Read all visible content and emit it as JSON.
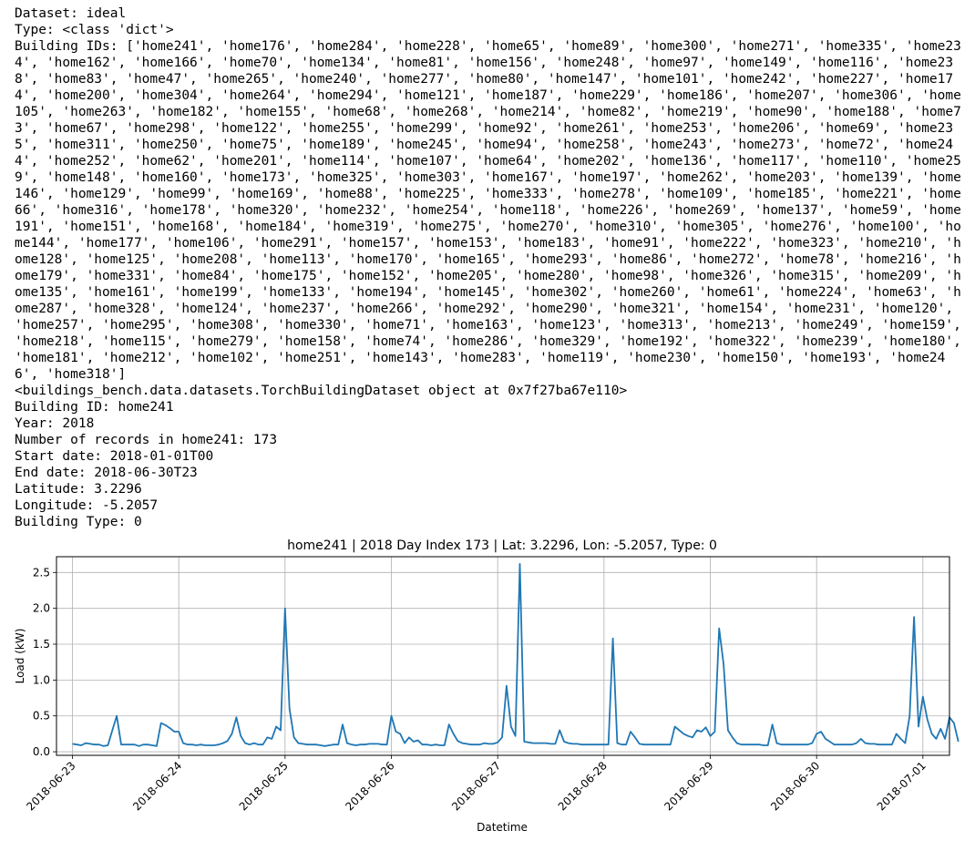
{
  "output": {
    "lines": [
      "Dataset: ideal",
      "Type: <class 'dict'>",
      "Building IDs: ['home241', 'home176', 'home284', 'home228', 'home65', 'home89', 'home300', 'home271', 'home335', 'home234', 'home162', 'home166', 'home70', 'home134', 'home81', 'home156', 'home248', 'home97', 'home149', 'home116', 'home238', 'home83', 'home47', 'home265', 'home240', 'home277', 'home80', 'home147', 'home101', 'home242', 'home227', 'home174', 'home200', 'home304', 'home264', 'home294', 'home121', 'home187', 'home229', 'home186', 'home207', 'home306', 'home105', 'home263', 'home182', 'home155', 'home68', 'home268', 'home214', 'home82', 'home219', 'home90', 'home188', 'home73', 'home67', 'home298', 'home122', 'home255', 'home299', 'home92', 'home261', 'home253', 'home206', 'home69', 'home235', 'home311', 'home250', 'home75', 'home189', 'home245', 'home94', 'home258', 'home243', 'home273', 'home72', 'home244', 'home252', 'home62', 'home201', 'home114', 'home107', 'home64', 'home202', 'home136', 'home117', 'home110', 'home259', 'home148', 'home160', 'home173', 'home325', 'home303', 'home167', 'home197', 'home262', 'home203', 'home139', 'home146', 'home129', 'home99', 'home169', 'home88', 'home225', 'home333', 'home278', 'home109', 'home185', 'home221', 'home66', 'home316', 'home178', 'home320', 'home232', 'home254', 'home118', 'home226', 'home269', 'home137', 'home59', 'home191', 'home151', 'home168', 'home184', 'home319', 'home275', 'home270', 'home310', 'home305', 'home276', 'home100', 'home144', 'home177', 'home106', 'home291', 'home157', 'home153', 'home183', 'home91', 'home222', 'home323', 'home210', 'home128', 'home125', 'home208', 'home113', 'home170', 'home165', 'home293', 'home86', 'home272', 'home78', 'home216', 'home179', 'home331', 'home84', 'home175', 'home152', 'home205', 'home280', 'home98', 'home326', 'home315', 'home209', 'home135', 'home161', 'home199', 'home133', 'home194', 'home145', 'home302', 'home260', 'home61', 'home224', 'home63', 'home287', 'home328', 'home124', 'home237', 'home266', 'home292', 'home290', 'home321', 'home154', 'home231', 'home120', 'home257', 'home295', 'home308', 'home330', 'home71', 'home163', 'home123', 'home313', 'home213', 'home249', 'home159', 'home218', 'home115', 'home279', 'home158', 'home74', 'home286', 'home329', 'home192', 'home322', 'home239', 'home180', 'home181', 'home212', 'home102', 'home251', 'home143', 'home283', 'home119', 'home230', 'home150', 'home193', 'home246', 'home318']",
      "<buildings_bench.data.datasets.TorchBuildingDataset object at 0x7f27ba67e110>",
      "Building ID: home241",
      "Year: 2018",
      "Number of records in home241: 173",
      "Start date: 2018-01-01T00",
      "End date: 2018-06-30T23",
      "Latitude: 3.2296",
      "Longitude: -5.2057",
      "Building Type: 0"
    ]
  },
  "chart_data": {
    "type": "line",
    "title": "home241 | 2018 Day Index 173 | Lat: 3.2296, Lon: -5.2057, Type: 0",
    "xlabel": "Datetime",
    "ylabel": "Load (kW)",
    "xticks": [
      "2018-06-23",
      "2018-06-24",
      "2018-06-25",
      "2018-06-26",
      "2018-06-27",
      "2018-06-28",
      "2018-06-29",
      "2018-06-30",
      "2018-07-01"
    ],
    "yticks": [
      "0.0",
      "0.5",
      "1.0",
      "1.5",
      "2.0",
      "2.5"
    ],
    "ylim": [
      -0.05,
      2.72
    ],
    "xlim_days": [
      -0.15,
      8.25
    ],
    "grid": true,
    "line_color": "#1f77b4",
    "series": [
      {
        "x_start": "2018-06-23T00",
        "step_hours": 1,
        "values": [
          0.11,
          0.1,
          0.09,
          0.12,
          0.11,
          0.1,
          0.1,
          0.08,
          0.09,
          0.3,
          0.5,
          0.1,
          0.1,
          0.1,
          0.1,
          0.08,
          0.1,
          0.1,
          0.09,
          0.08,
          0.4,
          0.37,
          0.33,
          0.28,
          0.28,
          0.12,
          0.1,
          0.1,
          0.09,
          0.1,
          0.09,
          0.09,
          0.09,
          0.1,
          0.12,
          0.15,
          0.25,
          0.48,
          0.22,
          0.12,
          0.1,
          0.12,
          0.1,
          0.1,
          0.2,
          0.18,
          0.35,
          0.3,
          2.0,
          0.6,
          0.2,
          0.12,
          0.11,
          0.1,
          0.1,
          0.1,
          0.09,
          0.08,
          0.09,
          0.1,
          0.1,
          0.38,
          0.12,
          0.1,
          0.09,
          0.1,
          0.1,
          0.11,
          0.11,
          0.11,
          0.1,
          0.1,
          0.5,
          0.28,
          0.25,
          0.12,
          0.2,
          0.14,
          0.16,
          0.1,
          0.1,
          0.09,
          0.1,
          0.09,
          0.09,
          0.38,
          0.25,
          0.15,
          0.12,
          0.11,
          0.1,
          0.1,
          0.1,
          0.12,
          0.11,
          0.11,
          0.13,
          0.2,
          0.92,
          0.35,
          0.22,
          2.62,
          0.14,
          0.13,
          0.12,
          0.12,
          0.12,
          0.12,
          0.11,
          0.11,
          0.3,
          0.14,
          0.12,
          0.11,
          0.11,
          0.1,
          0.1,
          0.1,
          0.1,
          0.1,
          0.1,
          0.1,
          1.58,
          0.12,
          0.1,
          0.1,
          0.28,
          0.2,
          0.11,
          0.1,
          0.1,
          0.1,
          0.1,
          0.1,
          0.1,
          0.1,
          0.35,
          0.3,
          0.25,
          0.22,
          0.2,
          0.3,
          0.28,
          0.34,
          0.22,
          0.28,
          1.72,
          1.22,
          0.3,
          0.2,
          0.12,
          0.1,
          0.1,
          0.1,
          0.1,
          0.1,
          0.09,
          0.09,
          0.38,
          0.12,
          0.1,
          0.1,
          0.1,
          0.1,
          0.1,
          0.1,
          0.1,
          0.12,
          0.25,
          0.28,
          0.18,
          0.14,
          0.1,
          0.1,
          0.1,
          0.1,
          0.1,
          0.12,
          0.18,
          0.12,
          0.11,
          0.11,
          0.1,
          0.1,
          0.1,
          0.1,
          0.25,
          0.18,
          0.12,
          0.5,
          1.88,
          0.35,
          0.77,
          0.45,
          0.25,
          0.18,
          0.32,
          0.18,
          0.48,
          0.4,
          0.14
        ]
      }
    ]
  }
}
